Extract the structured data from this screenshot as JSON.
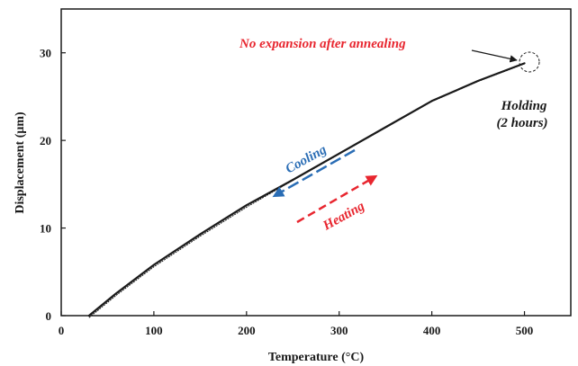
{
  "chart_data": {
    "type": "line",
    "xlabel": "Temperature (°C)",
    "ylabel": "Displacement (μm)",
    "xlim": [
      0,
      550
    ],
    "ylim": [
      0,
      35
    ],
    "x_ticks": [
      0,
      100,
      200,
      300,
      400,
      500
    ],
    "y_ticks": [
      0,
      10,
      20,
      30
    ],
    "grid": false,
    "series": [
      {
        "x": [
          30,
          60,
          100,
          150,
          200,
          250,
          300,
          350,
          400,
          450,
          500
        ],
        "y": [
          0,
          2.6,
          5.8,
          9.3,
          12.6,
          15.5,
          18.5,
          21.5,
          24.5,
          26.8,
          28.8
        ]
      }
    ],
    "annotations": {
      "no_expansion": {
        "text": "No expansion after annealing",
        "color": "#e8262f"
      },
      "holding_line1": {
        "text": "Holding",
        "color": "#1a1a1a"
      },
      "holding_line2": {
        "text": "(2 hours)",
        "color": "#1a1a1a"
      },
      "cooling": {
        "text": "Cooling",
        "color": "#2a6db5"
      },
      "heating": {
        "text": "Heating",
        "color": "#e8262f"
      }
    }
  }
}
